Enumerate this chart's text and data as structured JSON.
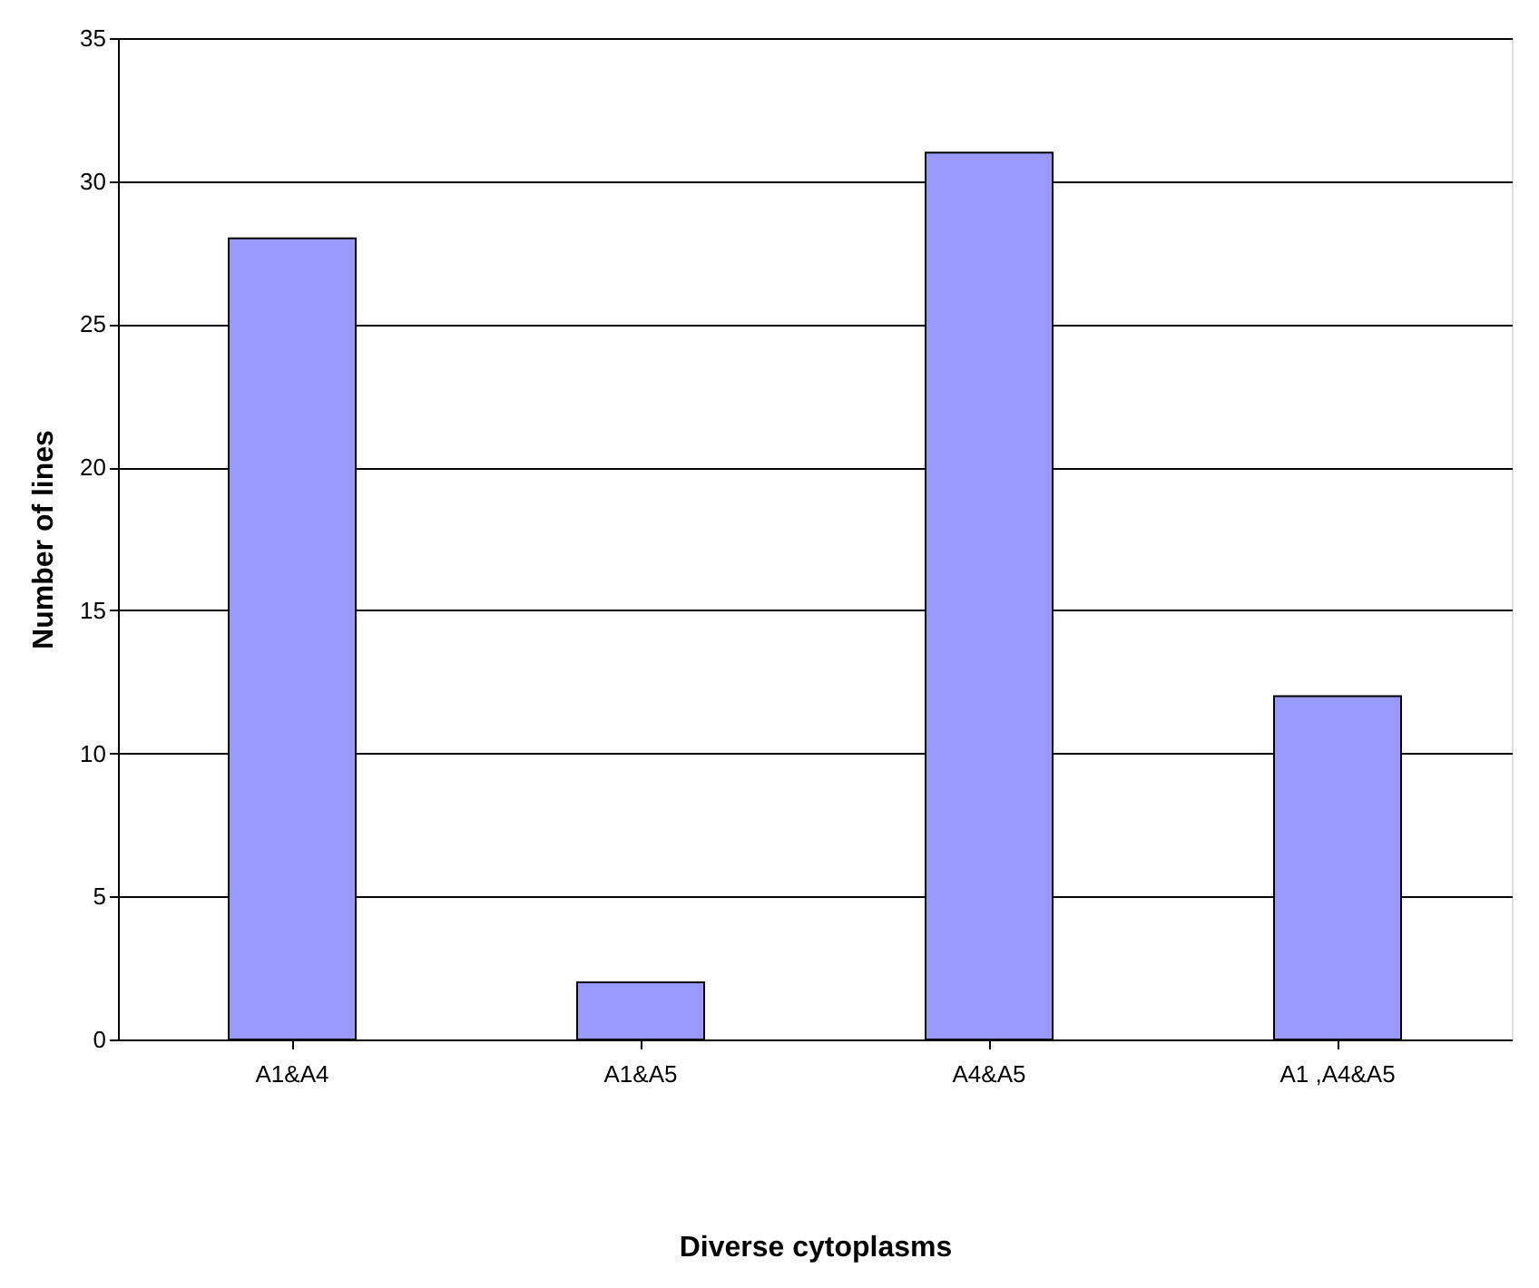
{
  "chart_data": {
    "type": "bar",
    "xlabel": "Diverse cytoplasms",
    "ylabel": "Number of lines",
    "categories": [
      "A1&A4",
      "A1&A5",
      "A4&A5",
      "A1 ,A4&A5"
    ],
    "values": [
      28,
      2,
      31,
      12
    ],
    "color": "#9999ff",
    "ylim": [
      0,
      35
    ],
    "yticks": [
      0,
      5,
      10,
      15,
      20,
      25,
      30,
      35
    ],
    "grid": "y"
  }
}
